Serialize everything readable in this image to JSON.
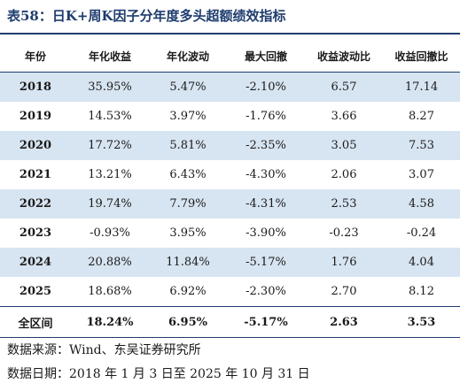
{
  "title": "表58：日K+周K因子分年度多头超额绩效指标",
  "headers": [
    "年份",
    "年化收益",
    "年化波动",
    "最大回撤",
    "收益波动比",
    "收益回撤比"
  ],
  "rows": [
    {
      "year": "2018",
      "ret": "35.95%",
      "vol": "5.47%",
      "mdd": "-2.10%",
      "rv": "6.57",
      "rd": "17.14"
    },
    {
      "year": "2019",
      "ret": "14.53%",
      "vol": "3.97%",
      "mdd": "-1.76%",
      "rv": "3.66",
      "rd": "8.27"
    },
    {
      "year": "2020",
      "ret": "17.72%",
      "vol": "5.81%",
      "mdd": "-2.35%",
      "rv": "3.05",
      "rd": "7.53"
    },
    {
      "year": "2021",
      "ret": "13.21%",
      "vol": "6.43%",
      "mdd": "-4.30%",
      "rv": "2.06",
      "rd": "3.07"
    },
    {
      "year": "2022",
      "ret": "19.74%",
      "vol": "7.79%",
      "mdd": "-4.31%",
      "rv": "2.53",
      "rd": "4.58"
    },
    {
      "year": "2023",
      "ret": "-0.93%",
      "vol": "3.95%",
      "mdd": "-3.90%",
      "rv": "-0.23",
      "rd": "-0.24"
    },
    {
      "year": "2024",
      "ret": "20.88%",
      "vol": "11.84%",
      "mdd": "-5.17%",
      "rv": "1.76",
      "rd": "4.04"
    },
    {
      "year": "2025",
      "ret": "18.68%",
      "vol": "6.92%",
      "mdd": "-2.30%",
      "rv": "2.70",
      "rd": "8.12"
    }
  ],
  "total": {
    "year": "全区间",
    "ret": "18.24%",
    "vol": "6.95%",
    "mdd": "-5.17%",
    "rv": "2.63",
    "rd": "3.53"
  },
  "source": "数据来源：Wind、东吴证券研究所",
  "date_note": "数据日期：2018 年 1 月 3 日至 2025 年 10 月 31 日",
  "colors": {
    "accent": "#1f3d6e",
    "row_shade": "#d7e4f1"
  }
}
